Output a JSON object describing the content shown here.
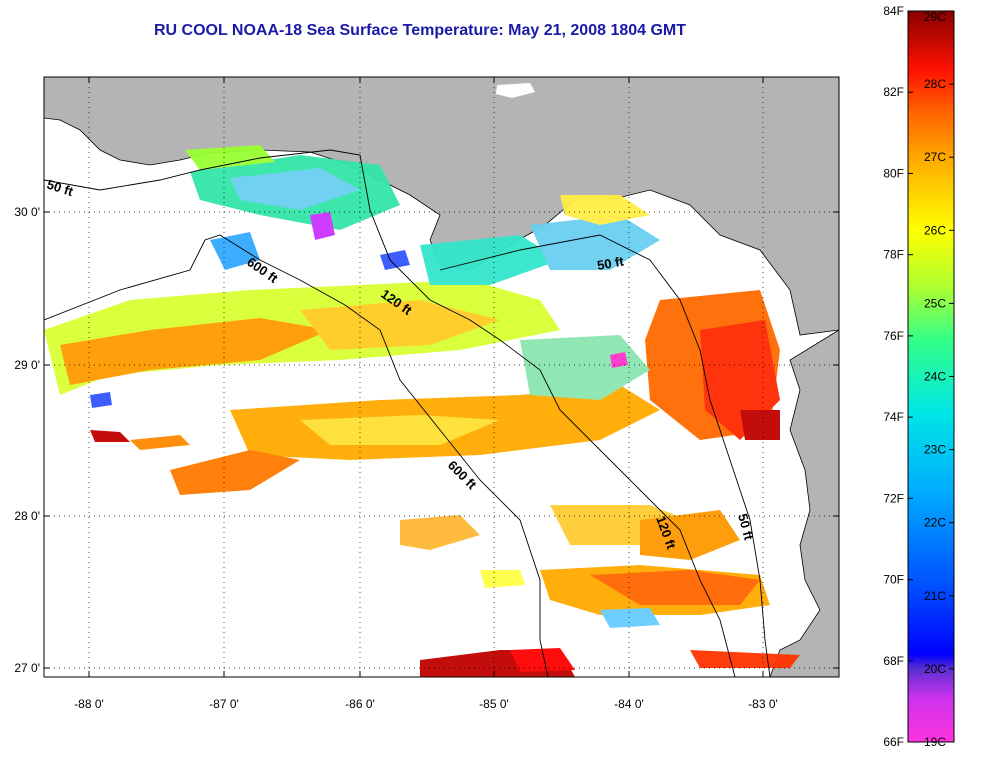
{
  "title": "RU COOL  NOAA-18  Sea Surface Temperature:  May 21, 2008 1804 GMT",
  "map": {
    "lon_ticks": [
      "-88 0'",
      "-87 0'",
      "-86 0'",
      "-85 0'",
      "-84 0'",
      "-83 0'"
    ],
    "lat_ticks": [
      "30 0'",
      "29 0'",
      "28 0'",
      "27 0'"
    ],
    "contour_labels": [
      "50 ft",
      "600 ft",
      "120 ft",
      "50 ft",
      "600 ft",
      "120 ft",
      "50 ft"
    ],
    "land_color": "#b4b4b4",
    "no_data_color": "#ffffff"
  },
  "colorbar": {
    "fahrenheit": [
      "84F",
      "82F",
      "80F",
      "78F",
      "76F",
      "74F",
      "72F",
      "70F",
      "68F",
      "66F"
    ],
    "celsius": [
      "29C",
      "28C",
      "27C",
      "26C",
      "25C",
      "24C",
      "23C",
      "22C",
      "21C",
      "20C",
      "19C"
    ],
    "range_c": [
      19,
      29
    ],
    "range_f": [
      66,
      84
    ],
    "colors": [
      "#ff33cc",
      "#6633cc",
      "#0000ff",
      "#00aaff",
      "#00e6e6",
      "#33ff66",
      "#ffff00",
      "#ffaa00",
      "#ff5500",
      "#ff0000",
      "#880000"
    ]
  }
}
